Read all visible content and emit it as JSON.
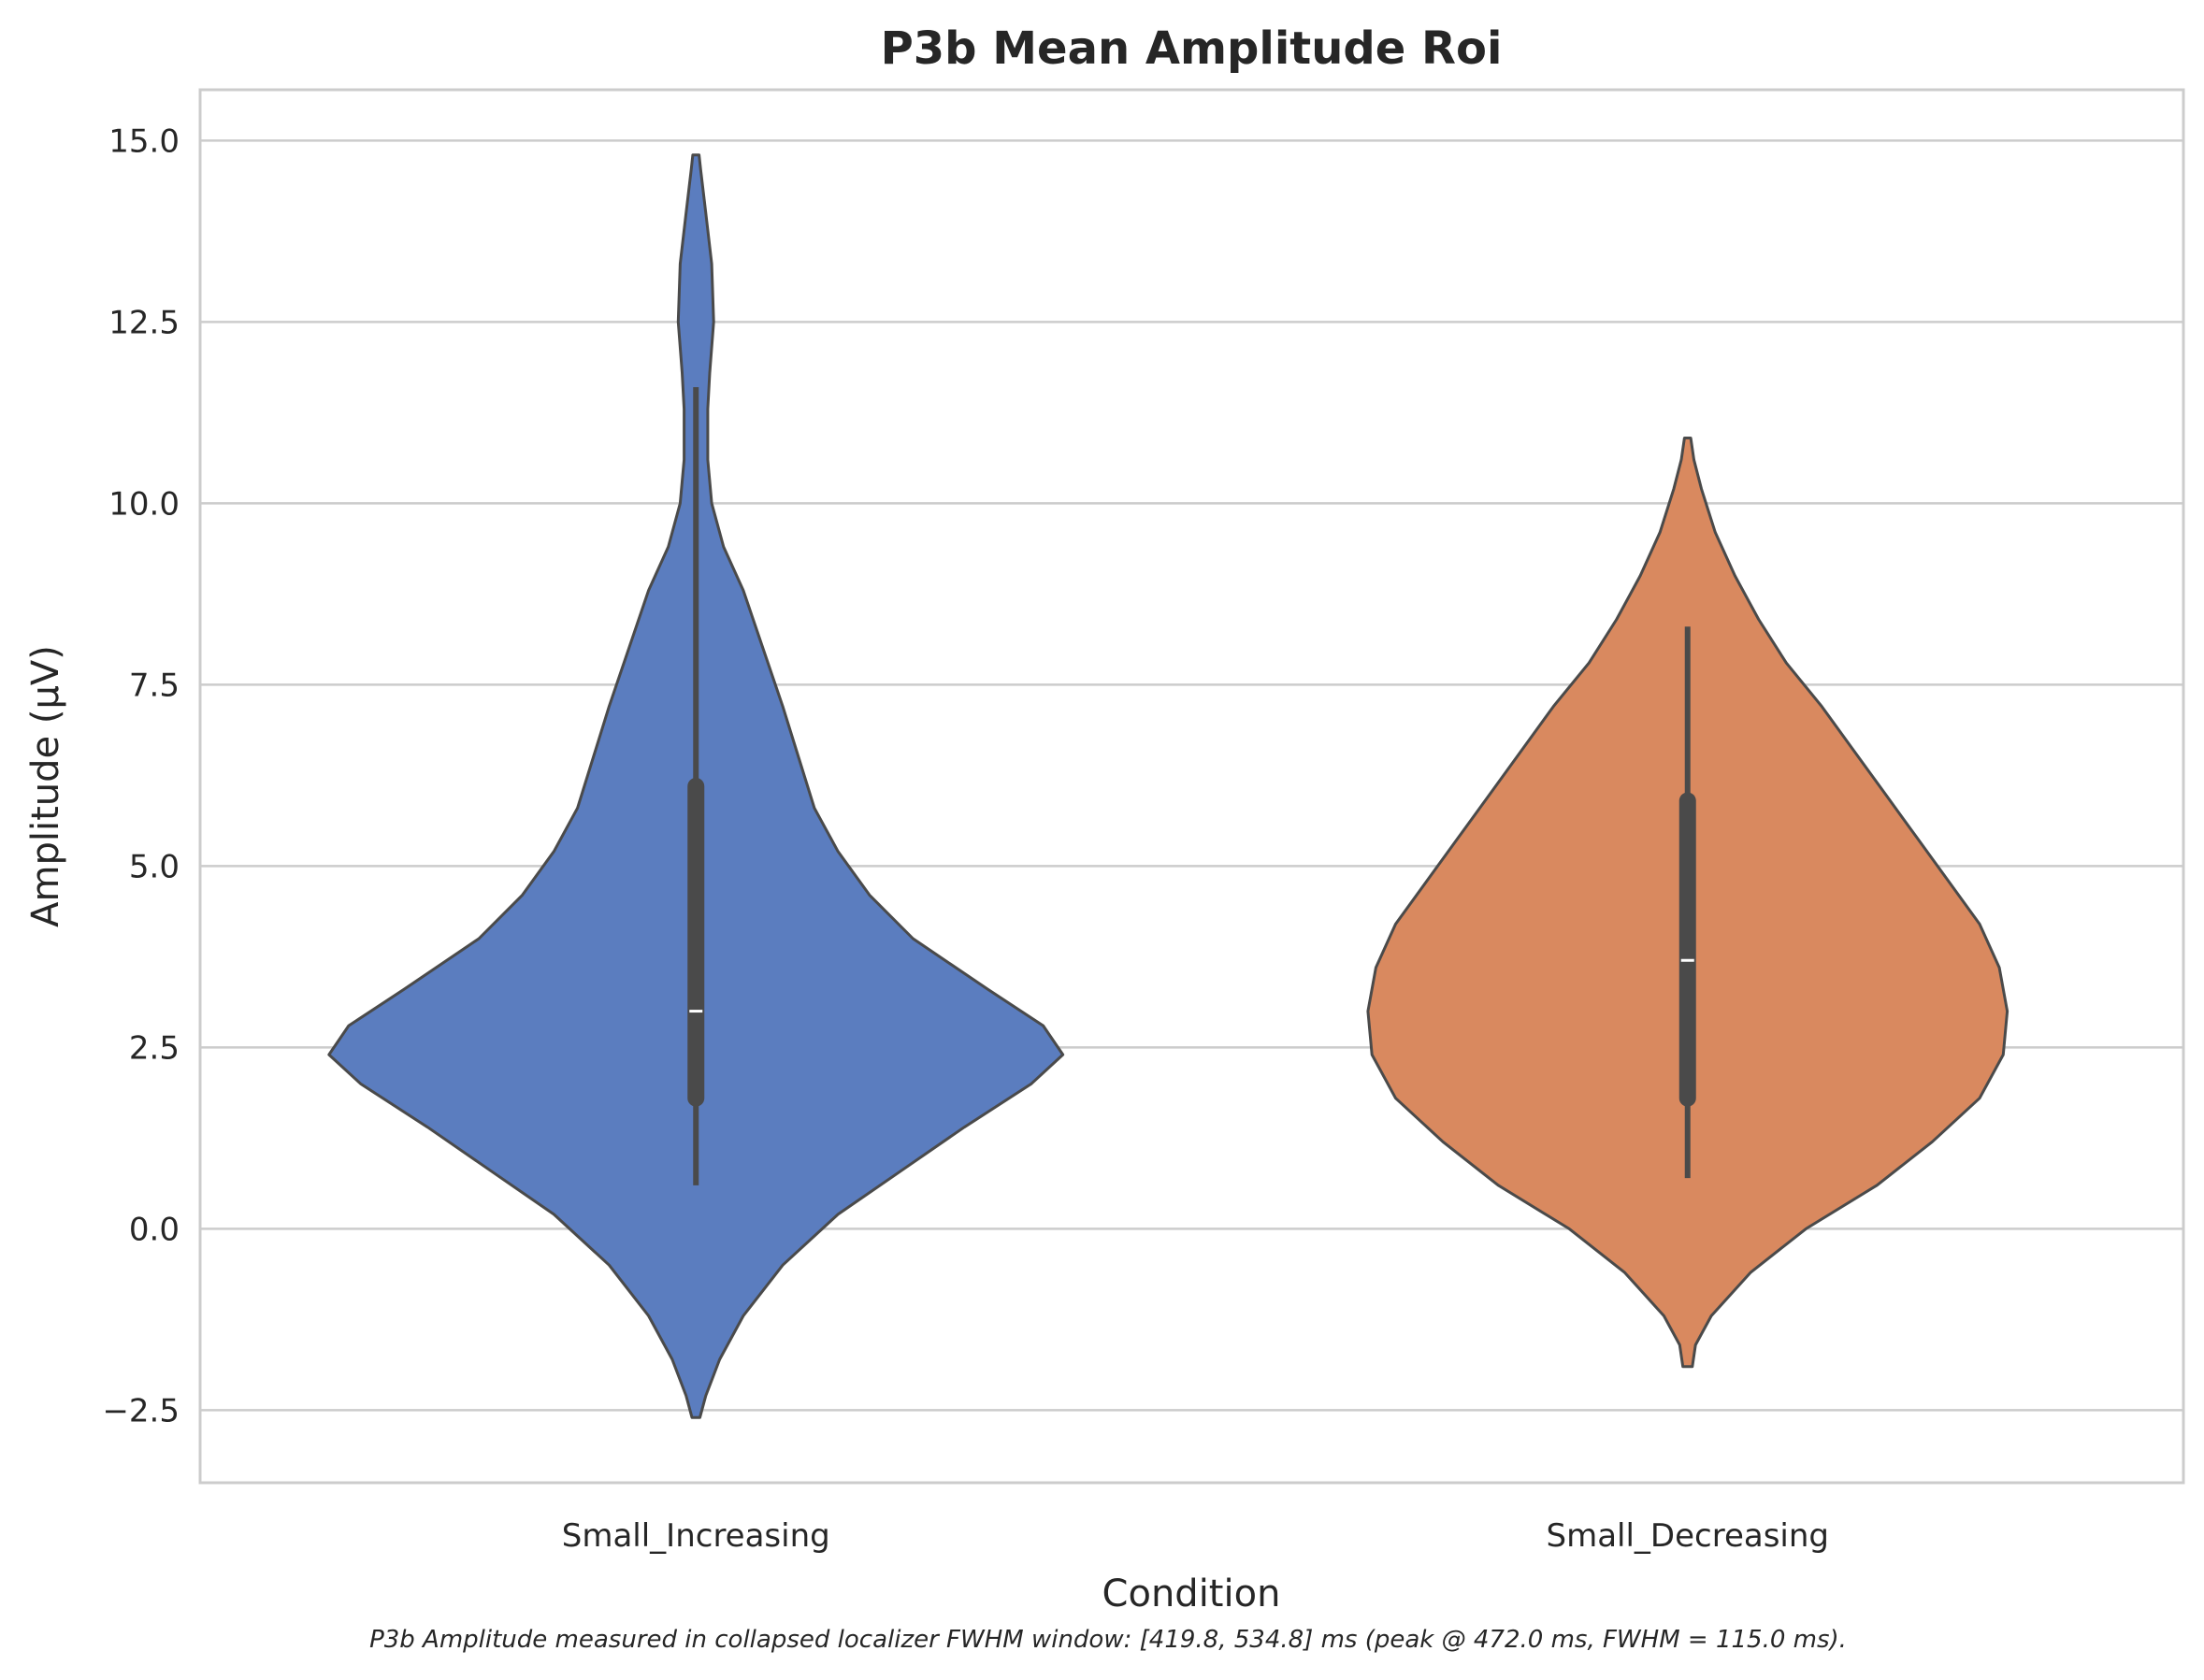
{
  "chart_data": {
    "type": "violin",
    "title": "P3b Mean Amplitude Roi",
    "xlabel": "Condition",
    "ylabel": "Amplitude (µV)",
    "caption": "P3b Amplitude measured in collapsed localizer FWHM window: [419.8, 534.8] ms (peak @ 472.0 ms, FWHM = 115.0 ms).",
    "ylim": [
      -3.5,
      15.7
    ],
    "yticks": [
      -2.5,
      0.0,
      2.5,
      5.0,
      7.5,
      10.0,
      12.5,
      15.0
    ],
    "ytick_labels": [
      "−2.5",
      "0.0",
      "2.5",
      "5.0",
      "7.5",
      "10.0",
      "12.5",
      "15.0"
    ],
    "grid": true,
    "categories": [
      "Small_Increasing",
      "Small_Decreasing"
    ],
    "series": [
      {
        "category": "Small_Increasing",
        "color": "#5b7dbf",
        "median": 3.0,
        "q1": 1.8,
        "q3": 6.1,
        "whisker_low": 0.6,
        "whisker_high": 11.6,
        "density_profile": [
          [
            -2.6,
            0.01
          ],
          [
            -2.3,
            0.025
          ],
          [
            -1.8,
            0.06
          ],
          [
            -1.2,
            0.12
          ],
          [
            -0.5,
            0.22
          ],
          [
            0.2,
            0.36
          ],
          [
            0.8,
            0.52
          ],
          [
            1.4,
            0.68
          ],
          [
            2.0,
            0.85
          ],
          [
            2.4,
            0.93
          ],
          [
            2.8,
            0.88
          ],
          [
            3.3,
            0.74
          ],
          [
            4.0,
            0.55
          ],
          [
            4.6,
            0.44
          ],
          [
            5.2,
            0.36
          ],
          [
            5.8,
            0.3
          ],
          [
            6.5,
            0.26
          ],
          [
            7.2,
            0.22
          ],
          [
            8.0,
            0.17
          ],
          [
            8.8,
            0.12
          ],
          [
            9.4,
            0.07
          ],
          [
            10.0,
            0.04
          ],
          [
            10.6,
            0.03
          ],
          [
            11.3,
            0.03
          ],
          [
            11.8,
            0.035
          ],
          [
            12.5,
            0.045
          ],
          [
            13.3,
            0.04
          ],
          [
            14.0,
            0.025
          ],
          [
            14.6,
            0.012
          ],
          [
            14.8,
            0.008
          ]
        ]
      },
      {
        "category": "Small_Decreasing",
        "color": "#d9895f",
        "median": 3.7,
        "q1": 1.8,
        "q3": 5.9,
        "whisker_low": 0.7,
        "whisker_high": 8.3,
        "density_profile": [
          [
            -1.9,
            0.012
          ],
          [
            -1.6,
            0.02
          ],
          [
            -1.2,
            0.06
          ],
          [
            -0.6,
            0.16
          ],
          [
            0.0,
            0.3
          ],
          [
            0.6,
            0.48
          ],
          [
            1.2,
            0.62
          ],
          [
            1.8,
            0.74
          ],
          [
            2.4,
            0.8
          ],
          [
            3.0,
            0.81
          ],
          [
            3.6,
            0.79
          ],
          [
            4.2,
            0.74
          ],
          [
            4.8,
            0.66
          ],
          [
            5.4,
            0.58
          ],
          [
            6.0,
            0.5
          ],
          [
            6.6,
            0.42
          ],
          [
            7.2,
            0.34
          ],
          [
            7.8,
            0.25
          ],
          [
            8.4,
            0.18
          ],
          [
            9.0,
            0.12
          ],
          [
            9.6,
            0.07
          ],
          [
            10.2,
            0.035
          ],
          [
            10.6,
            0.016
          ],
          [
            10.9,
            0.008
          ]
        ]
      }
    ]
  }
}
